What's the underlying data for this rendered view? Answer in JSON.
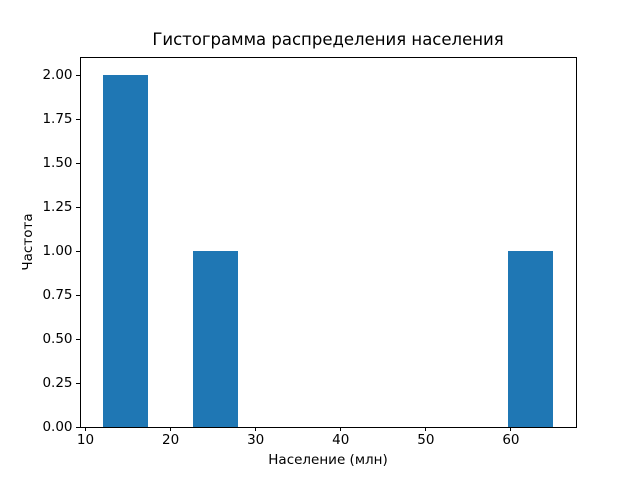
{
  "figure": {
    "background": "#ffffff"
  },
  "chart_data": {
    "type": "bar",
    "chart_kind": "histogram",
    "title": "Гистограмма распределения населения",
    "xlabel": "Население (млн)",
    "ylabel": "Частота",
    "bar_color": "#1f77b4",
    "axis_color": "#000000",
    "text_color": "#000000",
    "grid": false,
    "legend": false,
    "xlim": [
      9.35,
      67.65
    ],
    "ylim": [
      0,
      2.1
    ],
    "xticks": [
      10,
      20,
      30,
      40,
      50,
      60
    ],
    "yticks": [
      {
        "value": 0.0,
        "label": "0.00"
      },
      {
        "value": 0.25,
        "label": "0.25"
      },
      {
        "value": 0.5,
        "label": "0.50"
      },
      {
        "value": 0.75,
        "label": "0.75"
      },
      {
        "value": 1.0,
        "label": "1.00"
      },
      {
        "value": 1.25,
        "label": "1.25"
      },
      {
        "value": 1.5,
        "label": "1.50"
      },
      {
        "value": 1.75,
        "label": "1.75"
      },
      {
        "value": 2.0,
        "label": "2.00"
      }
    ],
    "bars": [
      {
        "bin_start": 12.0,
        "bin_end": 17.3,
        "count": 2
      },
      {
        "bin_start": 22.6,
        "bin_end": 27.9,
        "count": 1
      },
      {
        "bin_start": 59.7,
        "bin_end": 65.0,
        "count": 1
      }
    ]
  }
}
